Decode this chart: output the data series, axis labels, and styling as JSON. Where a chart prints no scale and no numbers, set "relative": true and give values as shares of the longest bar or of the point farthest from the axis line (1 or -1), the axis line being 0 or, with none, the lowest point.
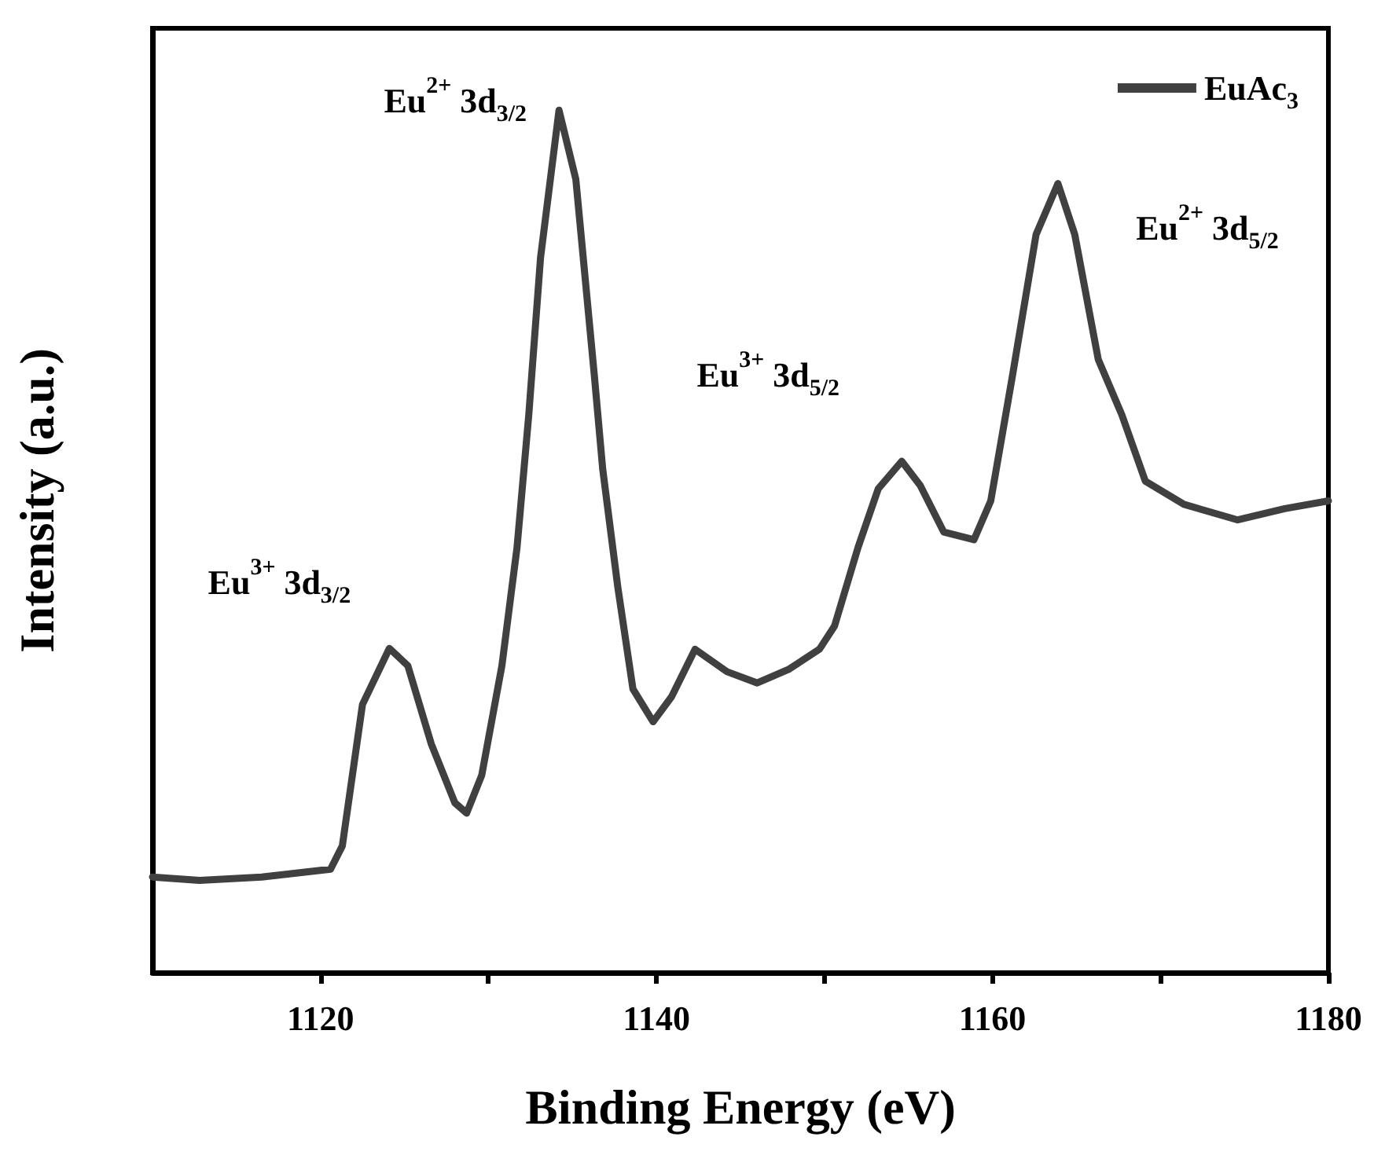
{
  "chart_data": {
    "type": "line",
    "xlabel": "Binding Energy (eV)",
    "ylabel": "Intensity (a.u.)",
    "relative": true,
    "xlim": [
      1110,
      1180
    ],
    "xticks": [
      1120,
      {
        "value": 1130,
        "label": null
      },
      1140,
      {
        "value": 1150,
        "label": null
      },
      1160,
      {
        "value": 1170,
        "label": null
      },
      1180
    ],
    "series": [
      {
        "name": "EuAc$_{3}$",
        "color": "#404040",
        "x": [
          1110,
          1112.8,
          1116.5,
          1120.6,
          1121.3,
          1122.5,
          1124.1,
          1125.2,
          1126.6,
          1128.0,
          1128.7,
          1129.6,
          1130.8,
          1131.7,
          1132.4,
          1133.1,
          1134.2,
          1135.2,
          1136.3,
          1136.8,
          1137.7,
          1138.6,
          1139.8,
          1140.9,
          1142.3,
          1144.2,
          1146.0,
          1147.9,
          1149.7,
          1150.6,
          1152.0,
          1153.2,
          1154.6,
          1155.7,
          1157.1,
          1158.9,
          1159.9,
          1161.2,
          1162.6,
          1163.9,
          1164.9,
          1166.3,
          1167.7,
          1169.1,
          1171.4,
          1174.6,
          1177.4,
          1180
        ],
        "values": [
          0.111,
          0.107,
          0.111,
          0.12,
          0.147,
          0.311,
          0.376,
          0.356,
          0.265,
          0.197,
          0.185,
          0.229,
          0.356,
          0.493,
          0.647,
          0.829,
          1,
          0.92,
          0.693,
          0.584,
          0.447,
          0.329,
          0.291,
          0.32,
          0.375,
          0.349,
          0.336,
          0.352,
          0.375,
          0.402,
          0.493,
          0.561,
          0.593,
          0.565,
          0.511,
          0.502,
          0.547,
          0.693,
          0.856,
          0.915,
          0.856,
          0.711,
          0.647,
          0.57,
          0.543,
          0.525,
          0.538,
          0.547
        ]
      }
    ],
    "annotations": [
      {
        "text": "Eu$^{3+}$ 3d$_{3/2}$",
        "x": 1124.1,
        "y": 0.376
      },
      {
        "text": "Eu$^{2+}$ 3d$_{3/2}$",
        "x": 1134.2,
        "y": 1
      },
      {
        "text": "Eu$^{3+}$ 3d$_{5/2}$",
        "x": 1154.6,
        "y": 0.593
      },
      {
        "text": "Eu$^{2+}$ 3d$_{5/2}$",
        "x": 1163.9,
        "y": 0.915
      }
    ],
    "legend": "top right",
    "marker": "none",
    "line_style": "solid",
    "grid": false
  }
}
